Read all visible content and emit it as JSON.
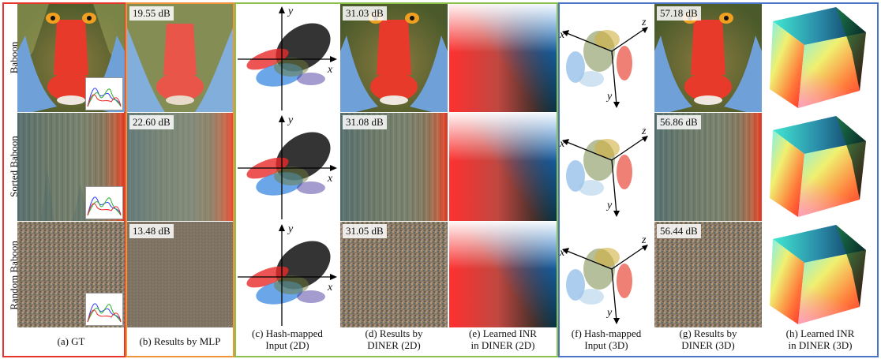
{
  "rows": [
    {
      "label": "Baboon",
      "psnr_mlp": "19.55 dB",
      "psnr_diner2d": "31.03 dB",
      "psnr_diner3d": "57.18 dB"
    },
    {
      "label": "Sorted Baboon",
      "psnr_mlp": "22.60 dB",
      "psnr_diner2d": "31.08 dB",
      "psnr_diner3d": "56.86 dB"
    },
    {
      "label": "Random Baboon",
      "psnr_mlp": "13.48 dB",
      "psnr_diner2d": "31.05 dB",
      "psnr_diner3d": "56.44 dB"
    }
  ],
  "captions": {
    "a": "(a) GT",
    "b": "(b) Results by MLP",
    "c1": "(c) Hash-mapped",
    "c2": "Input (2D)",
    "d1": "(d) Results by",
    "d2": "DINER (2D)",
    "e1": "(e) Learned INR",
    "e2": "in DINER (2D)",
    "f1": "(f) Hash-mapped",
    "f2": "Input (3D)",
    "g1": "(g) Results by",
    "g2": "DINER (3D)",
    "h1": "(h) Learned INR",
    "h2": "in DINER (3D)"
  },
  "axes": {
    "x": "x",
    "y": "y",
    "z": "z"
  },
  "frame_colors": {
    "gt": "#e8342b",
    "mlp": "#f0943a",
    "diner2d": "#8bc04a",
    "diner3d": "#4a74c8"
  }
}
